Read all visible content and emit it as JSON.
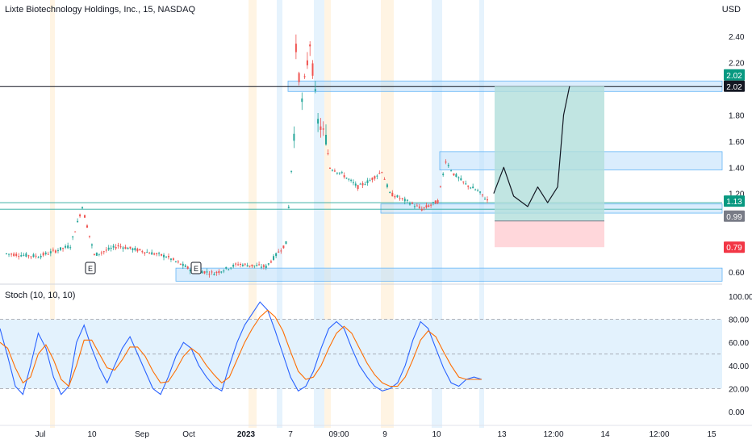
{
  "header": {
    "title": "Lixte Biotechnology Holdings, Inc., 15, NASDAQ",
    "currency": "USD"
  },
  "indicator": {
    "title": "Stoch (10, 10, 10)"
  },
  "colors": {
    "up": "#26a69a",
    "down": "#ef5350",
    "zone_fill": "#bbdefb",
    "zone_stroke": "#64b5f6",
    "stoch_k": "#2962ff",
    "stoch_d": "#ff6d00",
    "stoch_band": "#e3f2fd",
    "profit": "#b2dfdb",
    "loss": "#ffcdd2"
  },
  "price_axis": {
    "ticks": [
      "2.40",
      "2.20",
      "1.80",
      "1.60",
      "1.40",
      "1.20",
      "0.60"
    ],
    "badges": [
      {
        "text": "2.02",
        "bg": "#089981"
      },
      {
        "text": "2.02",
        "bg": "#131722"
      },
      {
        "text": "1.13",
        "bg": "#089981"
      },
      {
        "text": "0.99",
        "bg": "#787b86"
      },
      {
        "text": "0.79",
        "bg": "#f23645"
      }
    ]
  },
  "stoch_axis": {
    "ticks": [
      "100.00",
      "80.00",
      "60.00",
      "40.00",
      "20.00",
      "0.00"
    ]
  },
  "time_axis": {
    "labels": [
      "Jul",
      "10",
      "Sep",
      "Oct",
      "2023",
      "7",
      "09:00",
      "9",
      "10",
      "13",
      "12:00",
      "14",
      "12:00",
      "15"
    ]
  },
  "earnings_markers": [
    "E",
    "E"
  ],
  "chart_data": [
    {
      "type": "candlestick",
      "title": "Lixte Biotechnology Holdings, Inc., 15, NASDAQ",
      "ylabel": "USD",
      "ylim": [
        0.5,
        2.6
      ],
      "horizontal_lines": [
        2.02,
        1.13,
        1.08
      ],
      "zones": [
        {
          "low": 1.98,
          "high": 2.06
        },
        {
          "low": 1.38,
          "high": 1.52
        },
        {
          "low": 1.05,
          "high": 1.12
        },
        {
          "low": 0.53,
          "high": 0.63
        }
      ],
      "position": {
        "entry": 0.99,
        "target": 2.02,
        "stop": 0.79
      },
      "price_path": [
        {
          "x": 0.0,
          "y": 0.74
        },
        {
          "x": 0.08,
          "y": 0.72
        },
        {
          "x": 0.16,
          "y": 0.8
        },
        {
          "x": 0.19,
          "y": 1.1
        },
        {
          "x": 0.22,
          "y": 0.73
        },
        {
          "x": 0.28,
          "y": 0.8
        },
        {
          "x": 0.34,
          "y": 0.76
        },
        {
          "x": 0.4,
          "y": 0.72
        },
        {
          "x": 0.46,
          "y": 0.62
        },
        {
          "x": 0.52,
          "y": 0.59
        },
        {
          "x": 0.58,
          "y": 0.66
        },
        {
          "x": 0.65,
          "y": 0.64
        },
        {
          "x": 0.7,
          "y": 0.82
        },
        {
          "x": 0.72,
          "y": 1.65
        },
        {
          "x": 0.725,
          "y": 2.3
        },
        {
          "x": 0.74,
          "y": 1.9
        },
        {
          "x": 0.76,
          "y": 2.35
        },
        {
          "x": 0.78,
          "y": 1.75
        },
        {
          "x": 0.8,
          "y": 1.62
        },
        {
          "x": 0.81,
          "y": 1.4
        },
        {
          "x": 0.84,
          "y": 1.35
        },
        {
          "x": 0.88,
          "y": 1.25
        },
        {
          "x": 0.91,
          "y": 1.3
        },
        {
          "x": 0.94,
          "y": 1.37
        },
        {
          "x": 0.96,
          "y": 1.2
        },
        {
          "x": 1.01,
          "y": 1.13
        },
        {
          "x": 1.04,
          "y": 1.08
        },
        {
          "x": 1.08,
          "y": 1.14
        },
        {
          "x": 1.1,
          "y": 1.45
        },
        {
          "x": 1.12,
          "y": 1.35
        },
        {
          "x": 1.15,
          "y": 1.27
        },
        {
          "x": 1.18,
          "y": 1.22
        },
        {
          "x": 1.21,
          "y": 1.13
        }
      ],
      "projection": [
        {
          "x": 1.22,
          "y": 1.2
        },
        {
          "x": 1.245,
          "y": 1.4
        },
        {
          "x": 1.27,
          "y": 1.18
        },
        {
          "x": 1.305,
          "y": 1.1
        },
        {
          "x": 1.33,
          "y": 1.25
        },
        {
          "x": 1.355,
          "y": 1.13
        },
        {
          "x": 1.38,
          "y": 1.25
        },
        {
          "x": 1.395,
          "y": 1.8
        },
        {
          "x": 1.41,
          "y": 2.02
        }
      ]
    },
    {
      "type": "line",
      "title": "Stoch (10, 10, 10)",
      "ylim": [
        0,
        100
      ],
      "band": [
        20,
        80
      ],
      "series": [
        {
          "values": [
            72,
            48,
            22,
            15,
            40,
            68,
            55,
            30,
            15,
            22,
            60,
            75,
            55,
            38,
            25,
            40,
            55,
            65,
            50,
            35,
            20,
            15,
            30,
            48,
            60,
            55,
            40,
            30,
            22,
            18,
            40,
            60,
            75,
            85,
            95,
            88,
            70,
            50,
            30,
            18,
            22,
            35,
            55,
            72,
            78,
            72,
            55,
            40,
            30,
            22,
            18,
            20,
            25,
            40,
            62,
            78,
            72,
            55,
            38,
            25,
            22,
            28,
            30,
            28
          ]
        },
        {
          "values": [
            60,
            55,
            38,
            25,
            30,
            50,
            58,
            45,
            28,
            22,
            40,
            62,
            62,
            50,
            38,
            36,
            45,
            56,
            56,
            48,
            35,
            25,
            26,
            36,
            48,
            55,
            50,
            40,
            32,
            25,
            30,
            45,
            60,
            72,
            82,
            88,
            82,
            70,
            52,
            35,
            28,
            30,
            40,
            55,
            68,
            74,
            68,
            55,
            42,
            32,
            25,
            22,
            22,
            30,
            45,
            62,
            70,
            65,
            52,
            40,
            30,
            28,
            28,
            28
          ]
        }
      ]
    }
  ]
}
